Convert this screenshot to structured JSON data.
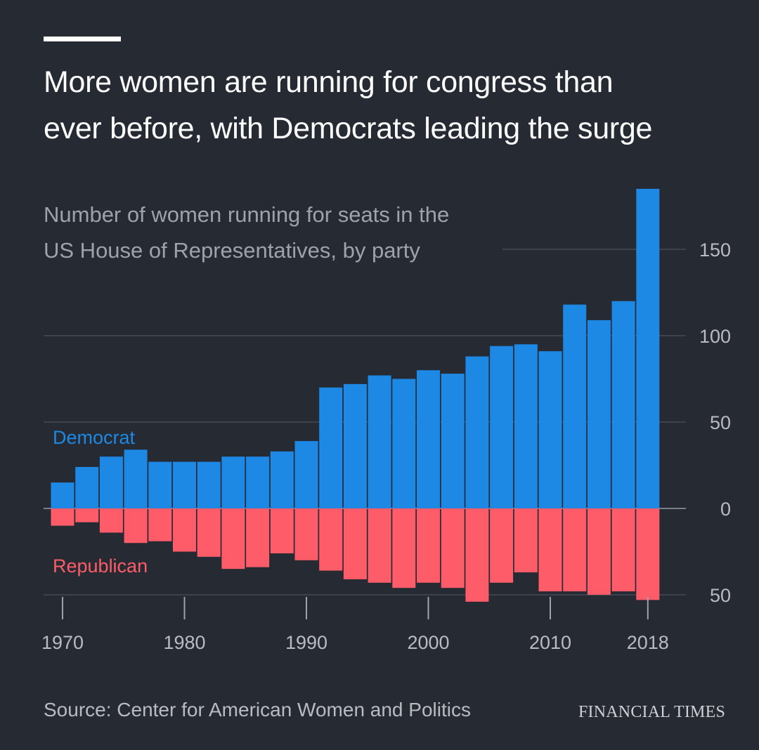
{
  "header": {
    "title_line1": "More women are running for congress than",
    "title_line2": "ever before, with Democrats leading the surge"
  },
  "chart_data": {
    "type": "bar",
    "subtitle_line1": "Number of women running for seats in the",
    "subtitle_line2": "US House of Representatives, by party",
    "x": [
      1970,
      1972,
      1974,
      1976,
      1978,
      1980,
      1982,
      1984,
      1986,
      1988,
      1990,
      1992,
      1994,
      1996,
      1998,
      2000,
      2002,
      2004,
      2006,
      2008,
      2010,
      2012,
      2014,
      2016,
      2018
    ],
    "x_tick_labels": [
      "1970",
      "1980",
      "1990",
      "2000",
      "2010",
      "2018"
    ],
    "x_ticks": [
      1970,
      1980,
      1990,
      2000,
      2010,
      2018
    ],
    "y_ticks": [
      0,
      50,
      100,
      150
    ],
    "y_tick_labels_below": [
      "50"
    ],
    "ylim": [
      -53,
      185
    ],
    "grid": true,
    "series": [
      {
        "name": "Democrat",
        "color": "#1e88e5",
        "values": [
          15,
          24,
          30,
          34,
          27,
          27,
          27,
          30,
          30,
          33,
          39,
          70,
          72,
          77,
          75,
          80,
          78,
          88,
          94,
          95,
          91,
          118,
          109,
          120,
          185
        ]
      },
      {
        "name": "Republican",
        "color": "#ff5c6a",
        "values": [
          10,
          8,
          14,
          20,
          19,
          25,
          28,
          35,
          34,
          26,
          30,
          36,
          41,
          43,
          46,
          43,
          46,
          54,
          43,
          37,
          48,
          48,
          50,
          48,
          53
        ]
      }
    ]
  },
  "footer": {
    "source": "Source: Center for American Women and Politics",
    "brand": "FINANCIAL TIMES"
  }
}
